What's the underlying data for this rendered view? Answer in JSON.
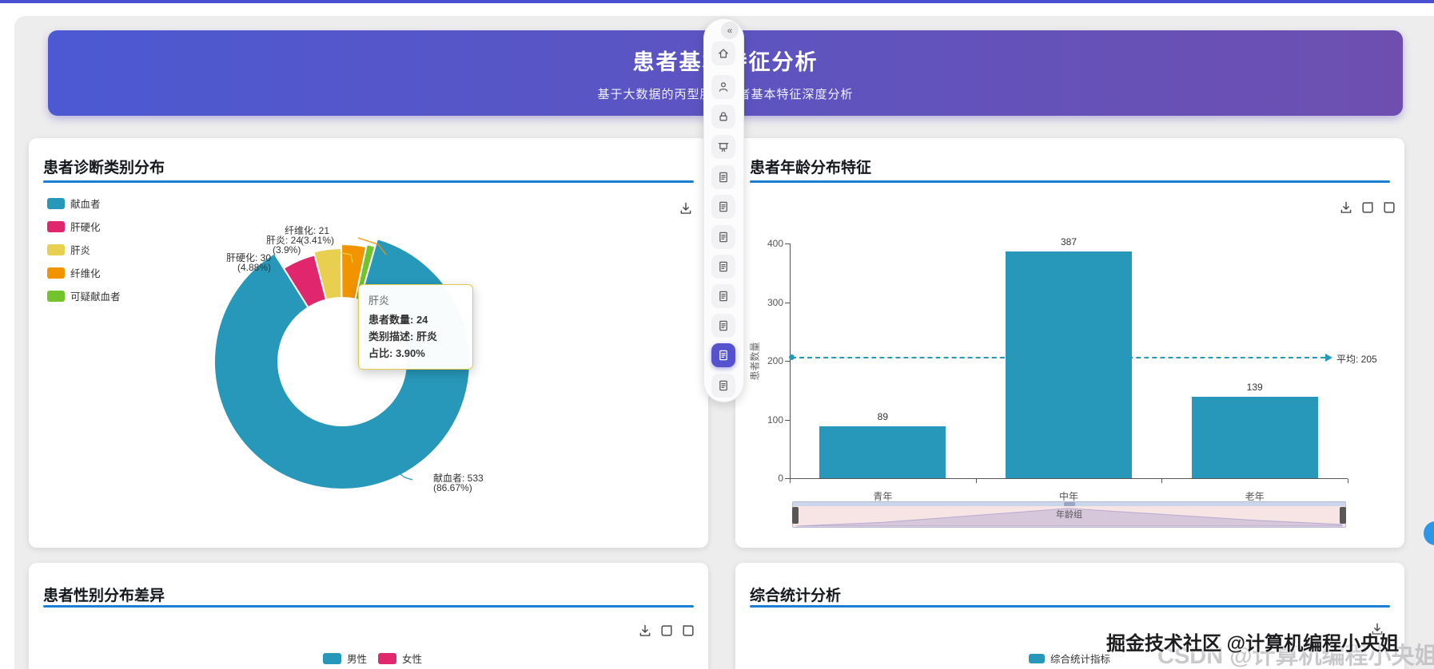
{
  "colors": {
    "top_line": "#4b51d4",
    "banner_from": "#4c59d2",
    "banner_to": "#6e4fb0",
    "underline": "#1a7fd4",
    "teal": "#2798ba",
    "pink": "#e0266d",
    "yellow": "#e8cf4f",
    "orange": "#f29400",
    "green": "#72c32c",
    "toolbar_active": "#5452cc",
    "fab_blue": "#2a97e8"
  },
  "header": {
    "title": "患者基本特征分析",
    "subtitle": "基于大数据的丙型肝炎患者基本特征深度分析"
  },
  "side_toolbar": {
    "collapse_glyph": "«",
    "items": [
      {
        "icon": "home-icon",
        "active": false
      },
      {
        "icon": "user-icon",
        "active": false
      },
      {
        "icon": "lock-icon",
        "active": false
      },
      {
        "icon": "presentation-icon",
        "active": false
      },
      {
        "icon": "document-icon",
        "active": false
      },
      {
        "icon": "document-icon",
        "active": false
      },
      {
        "icon": "document-icon",
        "active": false
      },
      {
        "icon": "document-icon",
        "active": false
      },
      {
        "icon": "document-icon",
        "active": false
      },
      {
        "icon": "document-icon",
        "active": false
      },
      {
        "icon": "document-icon",
        "active": true
      },
      {
        "icon": "document-icon",
        "active": false
      }
    ]
  },
  "cards": {
    "diagnosis": {
      "title": "患者诊断类别分布",
      "toolbox": [
        "download-icon"
      ],
      "legend": [
        {
          "label": "献血者",
          "color": "#2798ba"
        },
        {
          "label": "肝硬化",
          "color": "#e0266d"
        },
        {
          "label": "肝炎",
          "color": "#e8cf4f"
        },
        {
          "label": "纤维化",
          "color": "#f29400"
        },
        {
          "label": "可疑献血者",
          "color": "#72c32c"
        }
      ],
      "callouts": {
        "fibrosis1": "纤维化: 21",
        "fibrosis2": "(3.41%)",
        "hepatitis1": "肝炎: 24",
        "hepatitis2": "(3.9%)",
        "cirrhosis1": "肝硬化: 30",
        "cirrhosis2": "(4.88%)",
        "donor1": "献血者: 533",
        "donor2": "(86.67%)"
      },
      "tooltip": {
        "title": "肝炎",
        "row1": "患者数量: 24",
        "row2": "类别描述: 肝炎",
        "row3": "占比: 3.90%"
      }
    },
    "age": {
      "title": "患者年龄分布特征",
      "toolbox": [
        "download-icon",
        "box-arrow-icon",
        "box-arrow2-icon"
      ],
      "y_name": "患者数量",
      "x_name": "年龄组",
      "avg_label": "平均: 205"
    },
    "gender": {
      "title": "患者性别分布差异",
      "toolbox": [
        "download-icon",
        "box-arrow-icon",
        "box-arrow2-icon"
      ],
      "legend": [
        {
          "label": "男性",
          "color": "#2798ba"
        },
        {
          "label": "女性",
          "color": "#e0266d"
        }
      ]
    },
    "summary": {
      "title": "综合统计分析",
      "toolbox": [
        "download-icon"
      ],
      "legend": [
        {
          "label": "综合统计指标",
          "color": "#2798ba"
        }
      ]
    }
  },
  "watermark": {
    "front": "掘金技术社区 @计算机编程小央姐",
    "back": "CSDN @计算机编程小央姐"
  },
  "chart_data": [
    {
      "type": "pie",
      "title": "患者诊断类别分布",
      "labels": [
        "献血者",
        "肝硬化",
        "肝炎",
        "纤维化",
        "可疑献血者"
      ],
      "values": [
        533,
        30,
        24,
        21,
        7
      ],
      "percents": [
        86.67,
        4.88,
        3.9,
        3.41,
        1.14
      ],
      "colors": [
        "#2798ba",
        "#e0266d",
        "#e8cf4f",
        "#f29400",
        "#72c32c"
      ],
      "donut": true,
      "legend_position": "top-left",
      "hovered_slice": "肝炎"
    },
    {
      "type": "bar",
      "title": "患者年龄分布特征",
      "categories": [
        "青年",
        "中年",
        "老年"
      ],
      "values": [
        89,
        387,
        139
      ],
      "average": 205,
      "markline_label": "平均: 205",
      "xlabel": "年龄组",
      "ylabel": "患者数量",
      "ylim": [
        0,
        400
      ],
      "yticks": [
        0,
        100,
        200,
        300,
        400
      ],
      "bar_color": "#2798ba",
      "grid": false,
      "datazoom": true
    }
  ]
}
